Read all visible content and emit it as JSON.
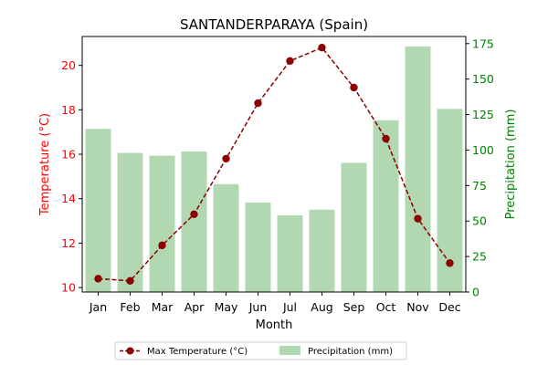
{
  "chart_data": {
    "type": "bar+line",
    "title": "SANTANDERPARAYA (Spain)",
    "xlabel": "Month",
    "categories": [
      "Jan",
      "Feb",
      "Mar",
      "Apr",
      "May",
      "Jun",
      "Jul",
      "Aug",
      "Sep",
      "Oct",
      "Nov",
      "Dec"
    ],
    "left_axis": {
      "label": "Temperature (°C)",
      "color": "#ff0000",
      "ylim": [
        9.8,
        21.3
      ],
      "ticks": [
        10,
        12,
        14,
        16,
        18,
        20
      ]
    },
    "right_axis": {
      "label": "Precipitation (mm)",
      "color": "#008000",
      "ylim": [
        0,
        180
      ],
      "ticks": [
        0,
        25,
        50,
        75,
        100,
        125,
        150,
        175
      ]
    },
    "series": [
      {
        "name": "Max Temperature (°C)",
        "kind": "line",
        "axis": "left",
        "color": "#8b0000",
        "values": [
          10.4,
          10.3,
          11.9,
          13.3,
          15.8,
          18.3,
          20.2,
          20.8,
          19.0,
          16.7,
          13.1,
          11.1
        ]
      },
      {
        "name": "Precipitation (mm)",
        "kind": "bar",
        "axis": "right",
        "color": "#b2d8b2",
        "values": [
          115,
          98,
          96,
          99,
          76,
          63,
          54,
          58,
          91,
          121,
          173,
          129
        ]
      }
    ],
    "legend": {
      "position": "bottom-center"
    }
  }
}
